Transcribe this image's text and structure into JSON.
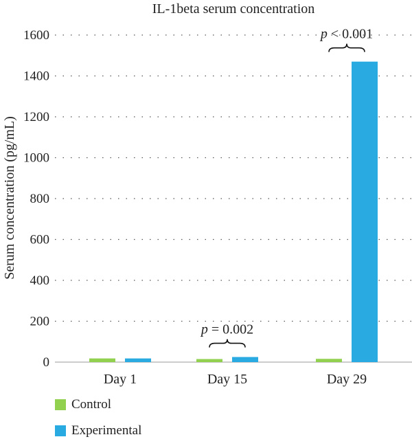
{
  "chart_data": {
    "type": "bar",
    "title": "IL-1beta serum concentration",
    "ylabel": "Serum concentration (pg/mL)",
    "xlabel": "",
    "categories": [
      "Day 1",
      "Day 15",
      "Day 29"
    ],
    "ylim": [
      0,
      1600
    ],
    "yticks": [
      0,
      200,
      400,
      600,
      800,
      1000,
      1200,
      1400,
      1600
    ],
    "grid": true,
    "legend_position": "bottom-left",
    "series": [
      {
        "name": "Control",
        "color": "#92d050",
        "values": [
          18,
          15,
          16
        ]
      },
      {
        "name": "Experimental",
        "color": "#29abe2",
        "values": [
          18,
          25,
          1470
        ]
      }
    ],
    "annotations": [
      {
        "category_index": 1,
        "p_symbol": "p",
        "text": " = 0.002"
      },
      {
        "category_index": 2,
        "p_symbol": "p",
        "text": " < 0.001"
      }
    ]
  }
}
